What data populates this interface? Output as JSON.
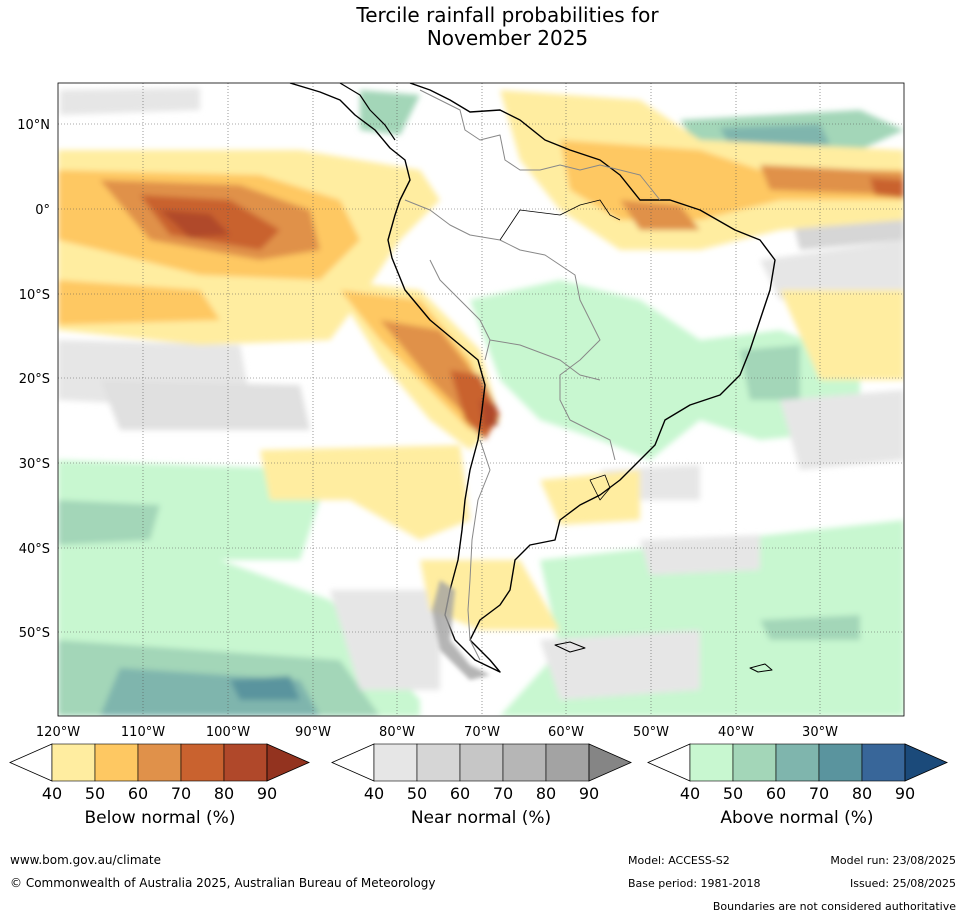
{
  "title": {
    "line1": "Tercile rainfall probabilities for",
    "line2": "November 2025"
  },
  "axes": {
    "lon_labels": [
      "120°W",
      "110°W",
      "100°W",
      "90°W",
      "80°W",
      "70°W",
      "60°W",
      "50°W",
      "40°W",
      "30°W"
    ],
    "lat_labels": [
      "10°N",
      "0°",
      "10°S",
      "20°S",
      "30°S",
      "40°S",
      "50°S"
    ]
  },
  "colorbars": [
    {
      "label": "Below normal (%)",
      "ticks": [
        "40",
        "50",
        "60",
        "70",
        "80",
        "90"
      ],
      "colors": [
        "#ffeda0",
        "#fec862",
        "#e0914a",
        "#c9622f",
        "#b0482a",
        "#93331f"
      ]
    },
    {
      "label": "Near normal (%)",
      "ticks": [
        "40",
        "50",
        "60",
        "70",
        "80",
        "90"
      ],
      "colors": [
        "#e6e6e6",
        "#d6d6d6",
        "#c6c6c6",
        "#b6b6b6",
        "#a3a3a3",
        "#858585"
      ]
    },
    {
      "label": "Above normal (%)",
      "ticks": [
        "40",
        "50",
        "60",
        "70",
        "80",
        "90"
      ],
      "colors": [
        "#c8f7d0",
        "#a3d6b8",
        "#7fb5ad",
        "#5a949e",
        "#386699",
        "#1b4a7a"
      ]
    }
  ],
  "footer": {
    "url": "www.bom.gov.au/climate",
    "copyright": "© Commonwealth of Australia 2025, Australian Bureau of Meteorology",
    "model": "Model: ACCESS-S2",
    "base_period": "Base period: 1981-2018",
    "model_run": "Model run: 23/08/2025",
    "issued": "Issued: 25/08/2025",
    "disclaimer": "Boundaries are not considered authoritative"
  }
}
